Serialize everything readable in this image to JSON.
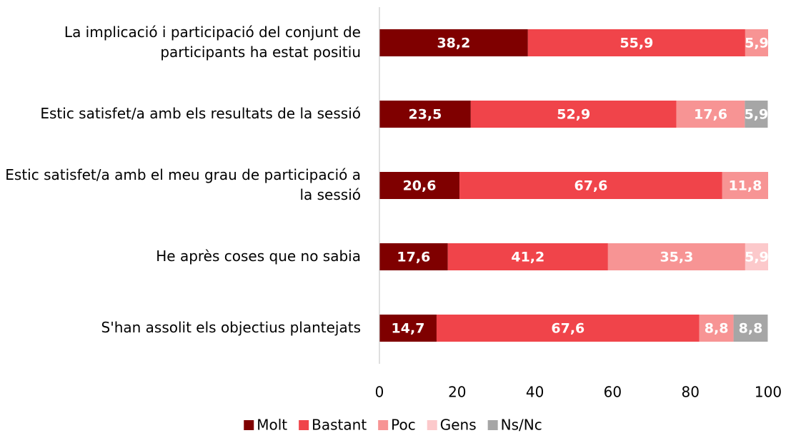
{
  "chart_data": {
    "type": "stacked-barh",
    "categories": [
      "La implicació i participació del conjunt de participants ha estat positiu",
      "Estic satisfet/a amb els resultats de la sessió",
      "Estic satisfet/a amb el meu grau de participació a la sessió",
      "He après coses que no sabia",
      "S'han assolit els objectius plantejats"
    ],
    "series": [
      {
        "name": "Molt",
        "color": "#7f0000",
        "values": [
          38.2,
          23.5,
          20.6,
          17.6,
          14.7
        ],
        "value_labels": [
          "38,2",
          "23,5",
          "20,6",
          "17,6",
          "14,7"
        ]
      },
      {
        "name": "Bastant",
        "color": "#f0444a",
        "values": [
          55.9,
          52.9,
          67.6,
          41.2,
          67.6
        ],
        "value_labels": [
          "55,9",
          "52,9",
          "67,6",
          "41,2",
          "67,6"
        ]
      },
      {
        "name": "Poc",
        "color": "#f79494",
        "values": [
          5.9,
          17.6,
          11.8,
          35.3,
          8.8
        ],
        "value_labels": [
          "5,9",
          "17,6",
          "11,8",
          "35,3",
          "8,8"
        ]
      },
      {
        "name": "Gens",
        "color": "#fcc9cb",
        "values": [
          null,
          null,
          null,
          5.9,
          null
        ],
        "value_labels": [
          null,
          null,
          null,
          "5,9",
          null
        ]
      },
      {
        "name": "Ns/Nc",
        "color": "#a6a6a6",
        "values": [
          null,
          5.9,
          null,
          null,
          8.8
        ],
        "value_labels": [
          null,
          "5,9",
          null,
          null,
          "8,8"
        ]
      }
    ],
    "xlim": [
      0,
      100
    ],
    "xticks": [
      0,
      20,
      40,
      60,
      80,
      100
    ]
  }
}
